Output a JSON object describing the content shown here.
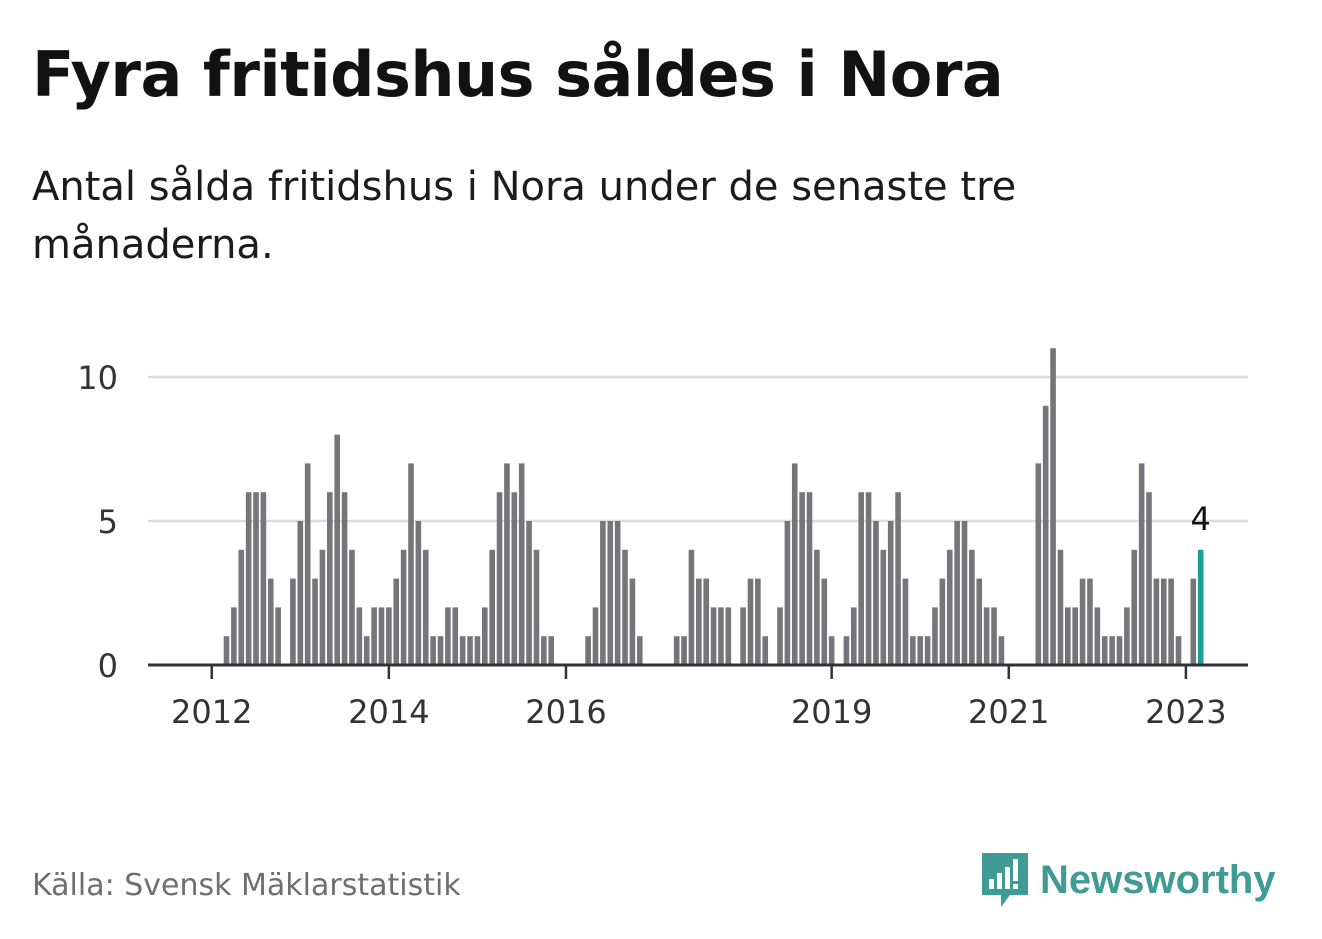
{
  "title": "Fyra fritidshus såldes i Nora",
  "subtitle": "Antal sålda fritidshus i Nora under de senaste tre månaderna.",
  "source": "Källa: Svensk Mäklarstatistik",
  "brand": {
    "name": "Newsworthy",
    "icon": "newsworthy-logo-icon",
    "color": "#3f9b93"
  },
  "colors": {
    "bar": "#76757a",
    "highlight": "#1a9e96",
    "grid": "#dcdcdc",
    "axis": "#333333"
  },
  "chart_data": {
    "type": "bar",
    "title": "Fyra fritidshus såldes i Nora",
    "xlabel": "",
    "ylabel": "",
    "ylim": [
      0,
      11
    ],
    "yticks": [
      0,
      5,
      10
    ],
    "grid": true,
    "x_start": "2011-05",
    "x_end": "2023-04",
    "xtick_labels": [
      "2012",
      "2014",
      "2016",
      "2019",
      "2021",
      "2023"
    ],
    "highlight_last": {
      "value": 4,
      "label": "4"
    },
    "values": [
      0,
      0,
      0,
      0,
      0,
      0,
      0,
      0,
      0,
      0,
      1,
      2,
      4,
      6,
      6,
      6,
      3,
      2,
      0,
      3,
      5,
      7,
      3,
      4,
      6,
      8,
      6,
      4,
      2,
      1,
      2,
      2,
      2,
      3,
      4,
      7,
      5,
      4,
      1,
      1,
      2,
      2,
      1,
      1,
      1,
      2,
      4,
      6,
      7,
      6,
      7,
      5,
      4,
      1,
      1,
      0,
      0,
      0,
      0,
      1,
      2,
      5,
      5,
      5,
      4,
      3,
      1,
      0,
      0,
      0,
      0,
      1,
      1,
      4,
      3,
      3,
      2,
      2,
      2,
      0,
      2,
      3,
      3,
      1,
      0,
      2,
      5,
      7,
      6,
      6,
      4,
      3,
      1,
      0,
      1,
      2,
      6,
      6,
      5,
      4,
      5,
      6,
      3,
      1,
      1,
      1,
      2,
      3,
      4,
      5,
      5,
      4,
      3,
      2,
      2,
      1,
      0,
      0,
      0,
      0,
      7,
      9,
      11,
      4,
      2,
      2,
      3,
      3,
      2,
      1,
      1,
      1,
      2,
      4,
      7,
      6,
      3,
      3,
      3,
      1,
      0,
      3,
      4
    ]
  }
}
